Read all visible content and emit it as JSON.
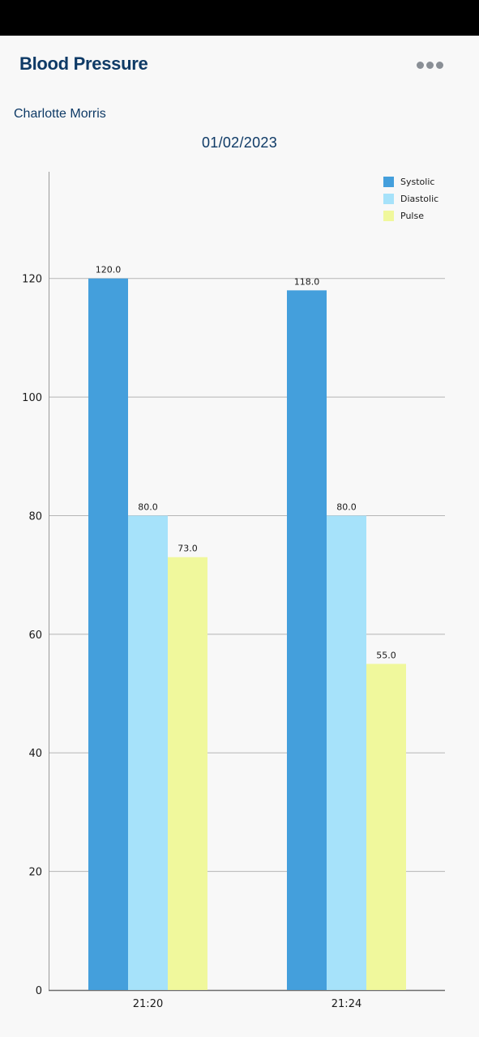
{
  "header": {
    "title": "Blood Pressure",
    "more_icon": "more-horizontal-icon"
  },
  "patient": {
    "name": "Charlotte Morris"
  },
  "date": "01/02/2023",
  "colors": {
    "header_text": "#0e3a66",
    "systolic": "#449fdc",
    "diastolic": "#a6e2fa",
    "pulse": "#f0f89c",
    "grid": "#b5b5b5",
    "background": "#f8f8f8"
  },
  "chart_data": {
    "type": "bar",
    "categories": [
      "21:20",
      "21:24"
    ],
    "series": [
      {
        "name": "Systolic",
        "values": [
          120.0,
          118.0
        ],
        "color": "#449fdc"
      },
      {
        "name": "Diastolic",
        "values": [
          80.0,
          80.0
        ],
        "color": "#a6e2fa"
      },
      {
        "name": "Pulse",
        "values": [
          73.0,
          55.0
        ],
        "color": "#f0f89c"
      }
    ],
    "value_labels": [
      [
        "120.0",
        "118.0"
      ],
      [
        "80.0",
        "80.0"
      ],
      [
        "73.0",
        "55.0"
      ]
    ],
    "y_ticks": [
      0,
      20,
      40,
      60,
      80,
      100,
      120
    ],
    "y_tick_labels": [
      "0",
      "20",
      "40",
      "60",
      "80",
      "100",
      "120"
    ],
    "ylim": [
      0,
      138
    ],
    "grid": true,
    "legend_position": "top-right"
  }
}
